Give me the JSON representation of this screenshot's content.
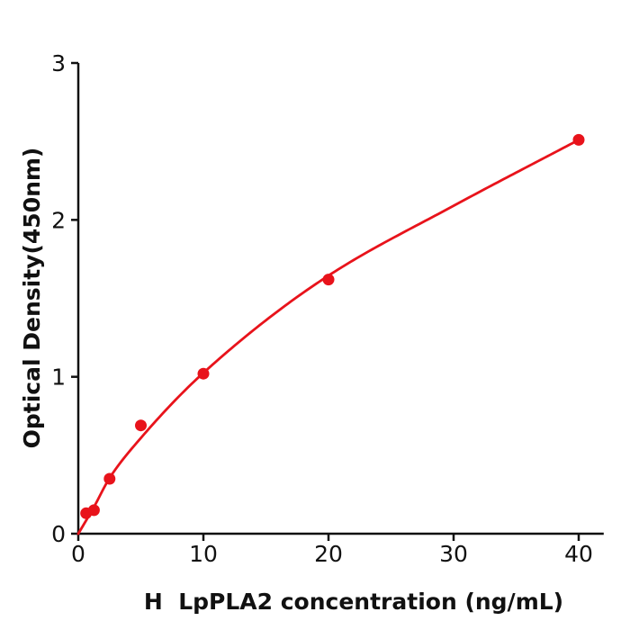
{
  "figure": {
    "background": "#ffffff",
    "axis_color": "#111111",
    "text_color": "#111111",
    "accent_color": "#e8131b"
  },
  "chart_data": {
    "type": "scatter",
    "title": "",
    "xlabel": "H  LpPLA2 concentration (ng/mL)",
    "ylabel": "Optical Density(450nm)",
    "xlim": [
      0,
      42
    ],
    "ylim": [
      0,
      3
    ],
    "x_ticks": [
      0,
      10,
      20,
      30,
      40
    ],
    "y_ticks": [
      0,
      1,
      2,
      3
    ],
    "grid": false,
    "legend": "none",
    "series": [
      {
        "name": "standard-points",
        "type": "scatter",
        "color": "#e8131b",
        "marker": "circle",
        "marker_radius": 6.5,
        "x": [
          0.625,
          1.25,
          2.5,
          5,
          10,
          20,
          40
        ],
        "y": [
          0.13,
          0.15,
          0.35,
          0.69,
          1.02,
          1.62,
          2.51
        ]
      },
      {
        "name": "fit-curve",
        "type": "line",
        "color": "#e8131b",
        "stroke_width": 2.8,
        "x": [
          0,
          1.25,
          2.5,
          5,
          10,
          20,
          30,
          40
        ],
        "y": [
          0.0,
          0.17,
          0.355,
          0.61,
          1.025,
          1.645,
          2.09,
          2.51
        ]
      }
    ]
  }
}
